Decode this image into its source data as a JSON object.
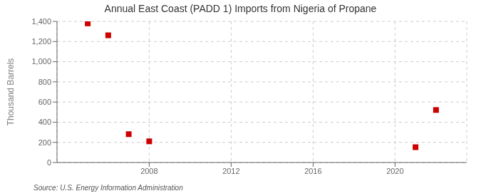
{
  "chart_data": {
    "type": "scatter",
    "title": "Annual East Coast (PADD 1) Imports from Nigeria of Propane",
    "ylabel": "Thousand Barrels",
    "source": "Source: U.S. Energy Information Administration",
    "x": [
      2005,
      2006,
      2007,
      2008,
      2021,
      2022
    ],
    "values": [
      1380,
      1262,
      281,
      210,
      152,
      521
    ],
    "color": "#cc0000",
    "marker": "square",
    "xlim": [
      2003.5,
      2023.5
    ],
    "ylim": [
      0,
      1400
    ],
    "xticks": [
      2008,
      2012,
      2016,
      2020
    ],
    "yticks": [
      0,
      200,
      400,
      600,
      800,
      {
        "value": 1000,
        "label": "1,000"
      },
      {
        "value": 1200,
        "label": "1,200"
      },
      {
        "value": 1400,
        "label": "1,400"
      }
    ],
    "grid": true
  }
}
